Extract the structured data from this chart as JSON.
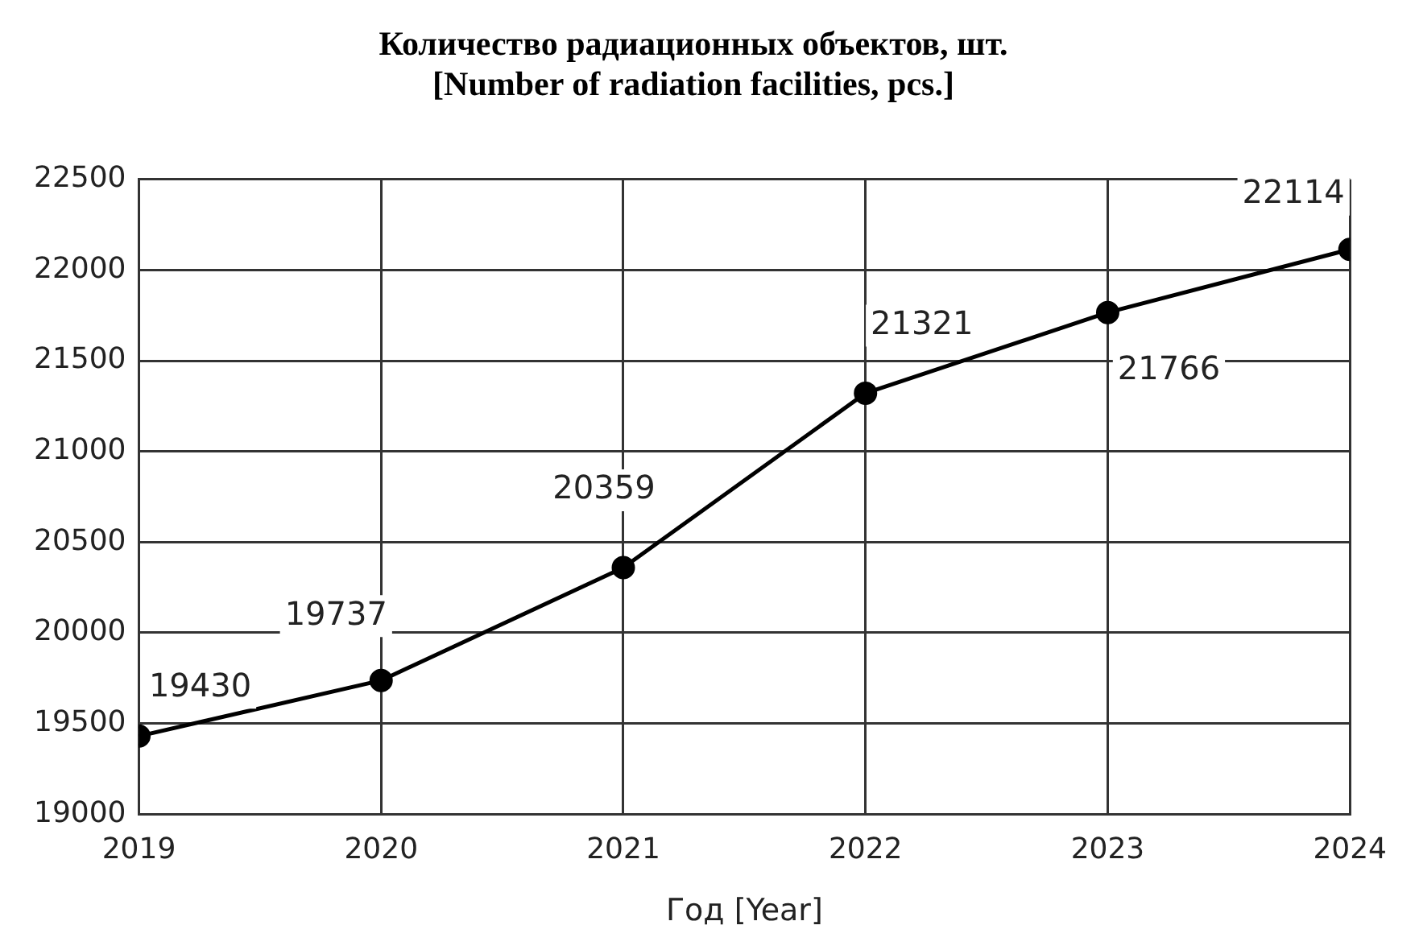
{
  "chart_data": {
    "type": "line",
    "title": "Количество радиационных объектов, шт.\n[Number of radiation facilities, pcs.]",
    "xlabel": "Год [Year]",
    "x": [
      2019,
      2020,
      2021,
      2022,
      2023,
      2024
    ],
    "series": [
      {
        "color": "#000000",
        "values": [
          19430,
          19737,
          20359,
          21321,
          21766,
          22114
        ]
      }
    ],
    "xlim": [
      2019,
      2024
    ],
    "xticks": [
      2019,
      2020,
      2021,
      2022,
      2023,
      2024
    ],
    "ylim": [
      19000,
      22500
    ],
    "yticks": [
      19000,
      19500,
      20000,
      20500,
      21000,
      21500,
      22000,
      22500
    ],
    "grid": true,
    "legend": false,
    "marker": "circle",
    "line_style": "solid",
    "data_labels": true
  }
}
